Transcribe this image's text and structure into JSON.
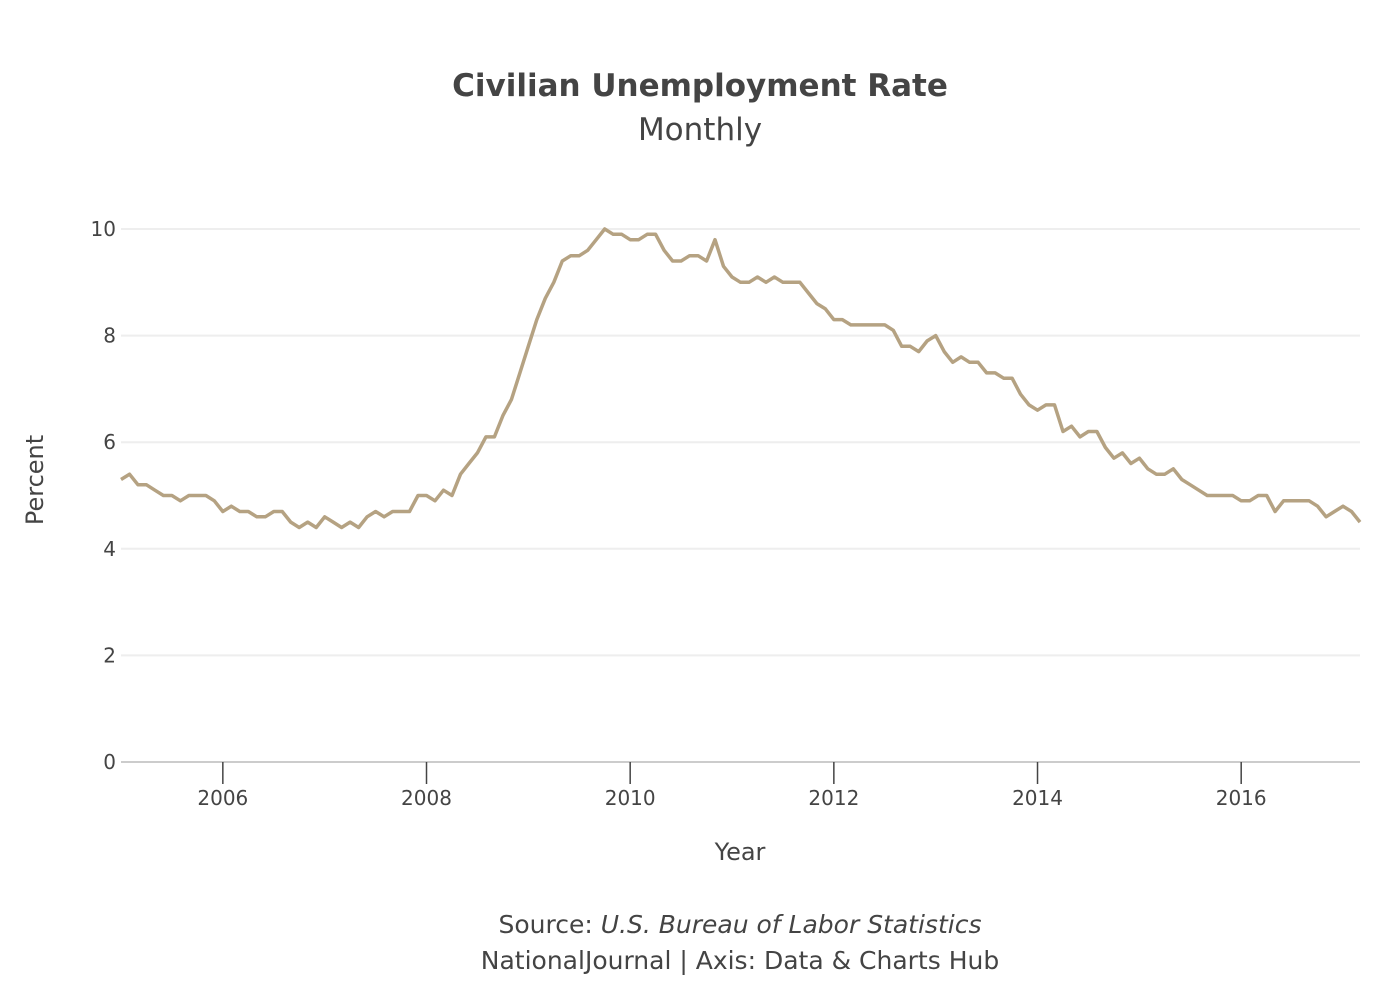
{
  "chart_data": {
    "type": "line",
    "title": "Civilian Unemployment Rate",
    "subtitle": "Monthly",
    "xlabel": "Year",
    "ylabel": "Percent",
    "xlim": [
      "2005-01",
      "2017-03"
    ],
    "ylim": [
      0,
      10
    ],
    "x_ticks": [
      "2006",
      "2008",
      "2010",
      "2012",
      "2014",
      "2016"
    ],
    "y_ticks": [
      "0",
      "2",
      "4",
      "6",
      "8",
      "10"
    ],
    "grid": "horizontal",
    "line_color": "#b5a282",
    "series": [
      {
        "start": "2005-01",
        "frequency": "monthly",
        "values": [
          5.3,
          5.4,
          5.2,
          5.2,
          5.1,
          5.0,
          5.0,
          4.9,
          5.0,
          5.0,
          5.0,
          4.9,
          4.7,
          4.8,
          4.7,
          4.7,
          4.6,
          4.6,
          4.7,
          4.7,
          4.5,
          4.4,
          4.5,
          4.4,
          4.6,
          4.5,
          4.4,
          4.5,
          4.4,
          4.6,
          4.7,
          4.6,
          4.7,
          4.7,
          4.7,
          5.0,
          5.0,
          4.9,
          5.1,
          5.0,
          5.4,
          5.6,
          5.8,
          6.1,
          6.1,
          6.5,
          6.8,
          7.3,
          7.8,
          8.3,
          8.7,
          9.0,
          9.4,
          9.5,
          9.5,
          9.6,
          9.8,
          10.0,
          9.9,
          9.9,
          9.8,
          9.8,
          9.9,
          9.9,
          9.6,
          9.4,
          9.4,
          9.5,
          9.5,
          9.4,
          9.8,
          9.3,
          9.1,
          9.0,
          9.0,
          9.1,
          9.0,
          9.1,
          9.0,
          9.0,
          9.0,
          8.8,
          8.6,
          8.5,
          8.3,
          8.3,
          8.2,
          8.2,
          8.2,
          8.2,
          8.2,
          8.1,
          7.8,
          7.8,
          7.7,
          7.9,
          8.0,
          7.7,
          7.5,
          7.6,
          7.5,
          7.5,
          7.3,
          7.3,
          7.2,
          7.2,
          6.9,
          6.7,
          6.6,
          6.7,
          6.7,
          6.2,
          6.3,
          6.1,
          6.2,
          6.2,
          5.9,
          5.7,
          5.8,
          5.6,
          5.7,
          5.5,
          5.4,
          5.4,
          5.5,
          5.3,
          5.2,
          5.1,
          5.0,
          5.0,
          5.0,
          5.0,
          4.9,
          4.9,
          5.0,
          5.0,
          4.7,
          4.9,
          4.9,
          4.9,
          4.9,
          4.8,
          4.6,
          4.7,
          4.8,
          4.7,
          4.5
        ]
      }
    ]
  },
  "footer": {
    "source_prefix": "Source: ",
    "source_name": "U.S. Bureau of Labor Statistics",
    "credit": "NationalJournal | Axis: Data & Charts Hub"
  }
}
